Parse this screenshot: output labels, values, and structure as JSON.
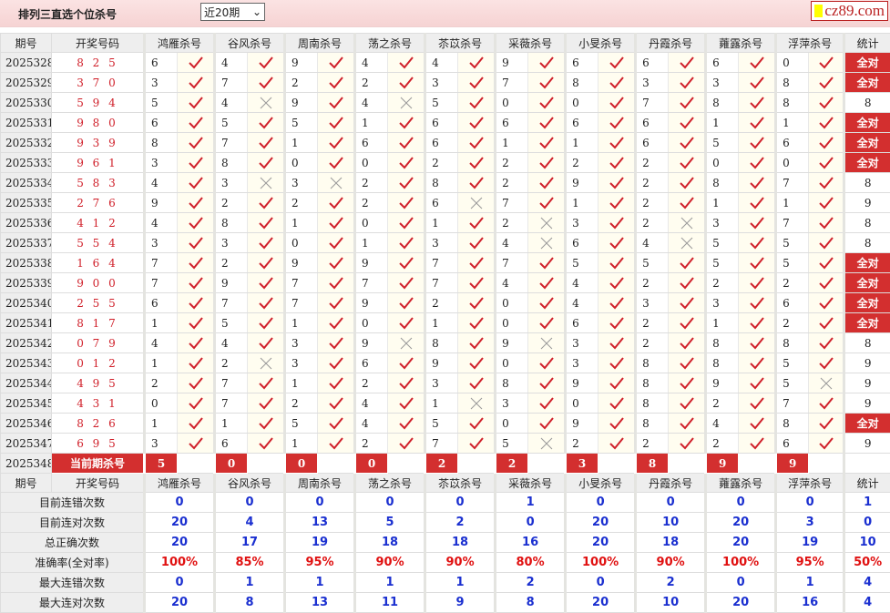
{
  "header": {
    "title": "排列三直选个位杀号",
    "period_select": "近20期",
    "logo": "cz89.com"
  },
  "columns": {
    "issue": "期号",
    "draw": "开奖号码",
    "experts": [
      "鸿雁杀号",
      "谷风杀号",
      "周南杀号",
      "荡之杀号",
      "苶苡杀号",
      "采薇杀号",
      "小旻杀号",
      "丹霞杀号",
      "蕹露杀号",
      "浮萍杀号"
    ],
    "stat": "统计"
  },
  "rows": [
    {
      "issue": "2025328",
      "draw": "825",
      "kills": [
        "6",
        "4",
        "9",
        "4",
        "4",
        "9",
        "6",
        "6",
        "6",
        "0"
      ],
      "hits": "1111111111",
      "stat": "全对"
    },
    {
      "issue": "2025329",
      "draw": "370",
      "kills": [
        "3",
        "7",
        "2",
        "2",
        "3",
        "7",
        "8",
        "3",
        "3",
        "8"
      ],
      "hits": "1111111111",
      "stat": "全对"
    },
    {
      "issue": "2025330",
      "draw": "594",
      "kills": [
        "5",
        "4",
        "9",
        "4",
        "5",
        "0",
        "0",
        "7",
        "8",
        "8"
      ],
      "hits": "1010111111",
      "stat": "8"
    },
    {
      "issue": "2025331",
      "draw": "980",
      "kills": [
        "6",
        "5",
        "5",
        "1",
        "6",
        "6",
        "6",
        "6",
        "1",
        "1"
      ],
      "hits": "1111111111",
      "stat": "全对"
    },
    {
      "issue": "2025332",
      "draw": "939",
      "kills": [
        "8",
        "7",
        "1",
        "6",
        "6",
        "1",
        "1",
        "6",
        "5",
        "6"
      ],
      "hits": "1111111111",
      "stat": "全对"
    },
    {
      "issue": "2025333",
      "draw": "961",
      "kills": [
        "3",
        "8",
        "0",
        "0",
        "2",
        "2",
        "2",
        "2",
        "0",
        "0"
      ],
      "hits": "1111111111",
      "stat": "全对"
    },
    {
      "issue": "2025334",
      "draw": "583",
      "kills": [
        "4",
        "3",
        "3",
        "2",
        "8",
        "2",
        "9",
        "2",
        "8",
        "7"
      ],
      "hits": "1001111111",
      "stat": "8"
    },
    {
      "issue": "2025335",
      "draw": "276",
      "kills": [
        "9",
        "2",
        "2",
        "2",
        "6",
        "7",
        "1",
        "2",
        "1",
        "1"
      ],
      "hits": "1111011111",
      "stat": "9"
    },
    {
      "issue": "2025336",
      "draw": "412",
      "kills": [
        "4",
        "8",
        "1",
        "0",
        "1",
        "2",
        "3",
        "2",
        "3",
        "7"
      ],
      "hits": "1111101011",
      "stat": "8"
    },
    {
      "issue": "2025337",
      "draw": "554",
      "kills": [
        "3",
        "3",
        "0",
        "1",
        "3",
        "4",
        "6",
        "4",
        "5",
        "5"
      ],
      "hits": "1111101011",
      "stat": "8"
    },
    {
      "issue": "2025338",
      "draw": "164",
      "kills": [
        "7",
        "2",
        "9",
        "9",
        "7",
        "7",
        "5",
        "5",
        "5",
        "5"
      ],
      "hits": "1111111111",
      "stat": "全对"
    },
    {
      "issue": "2025339",
      "draw": "900",
      "kills": [
        "7",
        "9",
        "7",
        "7",
        "7",
        "4",
        "4",
        "2",
        "2",
        "2"
      ],
      "hits": "1111111111",
      "stat": "全对"
    },
    {
      "issue": "2025340",
      "draw": "255",
      "kills": [
        "6",
        "7",
        "7",
        "9",
        "2",
        "0",
        "4",
        "3",
        "3",
        "6"
      ],
      "hits": "1111111111",
      "stat": "全对"
    },
    {
      "issue": "2025341",
      "draw": "817",
      "kills": [
        "1",
        "5",
        "1",
        "0",
        "1",
        "0",
        "6",
        "2",
        "1",
        "2"
      ],
      "hits": "1111111111",
      "stat": "全对"
    },
    {
      "issue": "2025342",
      "draw": "079",
      "kills": [
        "4",
        "4",
        "3",
        "9",
        "8",
        "9",
        "3",
        "2",
        "8",
        "8"
      ],
      "hits": "1110101111",
      "stat": "8"
    },
    {
      "issue": "2025343",
      "draw": "012",
      "kills": [
        "1",
        "2",
        "3",
        "6",
        "9",
        "0",
        "3",
        "8",
        "8",
        "5"
      ],
      "hits": "1011111111",
      "stat": "9"
    },
    {
      "issue": "2025344",
      "draw": "495",
      "kills": [
        "2",
        "7",
        "1",
        "2",
        "3",
        "8",
        "9",
        "8",
        "9",
        "5"
      ],
      "hits": "1111111110",
      "stat": "9"
    },
    {
      "issue": "2025345",
      "draw": "431",
      "kills": [
        "0",
        "7",
        "2",
        "4",
        "1",
        "3",
        "0",
        "8",
        "2",
        "7"
      ],
      "hits": "1111011111",
      "stat": "9"
    },
    {
      "issue": "2025346",
      "draw": "826",
      "kills": [
        "1",
        "1",
        "5",
        "4",
        "5",
        "0",
        "9",
        "8",
        "4",
        "8"
      ],
      "hits": "1111111111",
      "stat": "全对"
    },
    {
      "issue": "2025347",
      "draw": "695",
      "kills": [
        "3",
        "6",
        "1",
        "2",
        "7",
        "5",
        "2",
        "2",
        "2",
        "6"
      ],
      "hits": "1111101111",
      "stat": "9"
    }
  ],
  "current": {
    "issue": "2025348",
    "label": "当前期杀号",
    "kills": [
      "5",
      "0",
      "0",
      "0",
      "2",
      "2",
      "3",
      "8",
      "9",
      "9"
    ]
  },
  "stats": [
    {
      "label": "目前连错次数",
      "values": [
        "0",
        "0",
        "0",
        "0",
        "0",
        "1",
        "0",
        "0",
        "0",
        "0",
        "1"
      ]
    },
    {
      "label": "目前连对次数",
      "values": [
        "20",
        "4",
        "13",
        "5",
        "2",
        "0",
        "20",
        "10",
        "20",
        "3",
        "0"
      ]
    },
    {
      "label": "总正确次数",
      "values": [
        "20",
        "17",
        "19",
        "18",
        "18",
        "16",
        "20",
        "18",
        "20",
        "19",
        "10"
      ]
    },
    {
      "label": "准确率(全对率)",
      "values": [
        "100%",
        "85%",
        "95%",
        "90%",
        "90%",
        "80%",
        "100%",
        "90%",
        "100%",
        "95%",
        "50%"
      ],
      "highlight": true
    },
    {
      "label": "最大连错次数",
      "values": [
        "0",
        "1",
        "1",
        "1",
        "1",
        "2",
        "0",
        "2",
        "0",
        "1",
        "4"
      ]
    },
    {
      "label": "最大连对次数",
      "values": [
        "20",
        "8",
        "13",
        "11",
        "9",
        "8",
        "20",
        "10",
        "20",
        "16",
        "4"
      ]
    }
  ],
  "colors": {
    "hit": "#d0202a",
    "miss": "#999999",
    "accent": "#d32f2f",
    "stat_value": "#1a2fd0"
  }
}
